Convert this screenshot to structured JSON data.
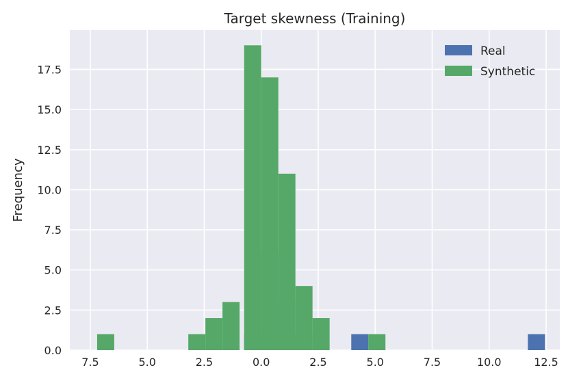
{
  "chart_data": {
    "type": "bar",
    "title": "Target skewness (Training)",
    "xlabel": "",
    "ylabel": "Frequency",
    "xlim": [
      -8.4,
      13.1
    ],
    "ylim": [
      0,
      19.95
    ],
    "grid": true,
    "legend": "top-right",
    "x_ticks": [
      -7.5,
      -5.0,
      -2.5,
      0.0,
      2.5,
      5.0,
      7.5,
      10.0,
      12.5
    ],
    "x_tick_labels": [
      "7.5",
      "5.0",
      "2.5",
      "0.0",
      "2.5",
      "5.0",
      "7.5",
      "10.0",
      "12.5"
    ],
    "y_ticks": [
      0.0,
      2.5,
      5.0,
      7.5,
      10.0,
      12.5,
      15.0,
      17.5
    ],
    "y_tick_labels": [
      "0.0",
      "2.5",
      "5.0",
      "7.5",
      "10.0",
      "12.5",
      "15.0",
      "17.5"
    ],
    "series": [
      {
        "name": "Real",
        "color": "#4c72b0",
        "bins": [
          {
            "x0": -0.75,
            "x1": 0.0,
            "value": 1
          },
          {
            "x0": 0.0,
            "x1": 0.75,
            "value": 6
          },
          {
            "x0": 0.75,
            "x1": 1.5,
            "value": 3
          },
          {
            "x0": 1.5,
            "x1": 2.25,
            "value": 1
          },
          {
            "x0": 3.95,
            "x1": 4.7,
            "value": 1
          },
          {
            "x0": 11.7,
            "x1": 12.45,
            "value": 1
          }
        ]
      },
      {
        "name": "Synthetic",
        "color": "#55a868",
        "bins": [
          {
            "x0": -7.2,
            "x1": -6.45,
            "value": 1
          },
          {
            "x0": -3.2,
            "x1": -2.45,
            "value": 1
          },
          {
            "x0": -2.45,
            "x1": -1.7,
            "value": 2
          },
          {
            "x0": -1.7,
            "x1": -0.95,
            "value": 3
          },
          {
            "x0": -0.75,
            "x1": 0.0,
            "value": 19
          },
          {
            "x0": 0.0,
            "x1": 0.75,
            "value": 17
          },
          {
            "x0": 0.75,
            "x1": 1.5,
            "value": 11
          },
          {
            "x0": 1.5,
            "x1": 2.25,
            "value": 4
          },
          {
            "x0": 2.25,
            "x1": 3.0,
            "value": 2
          },
          {
            "x0": 4.7,
            "x1": 5.45,
            "value": 1
          }
        ]
      }
    ]
  }
}
